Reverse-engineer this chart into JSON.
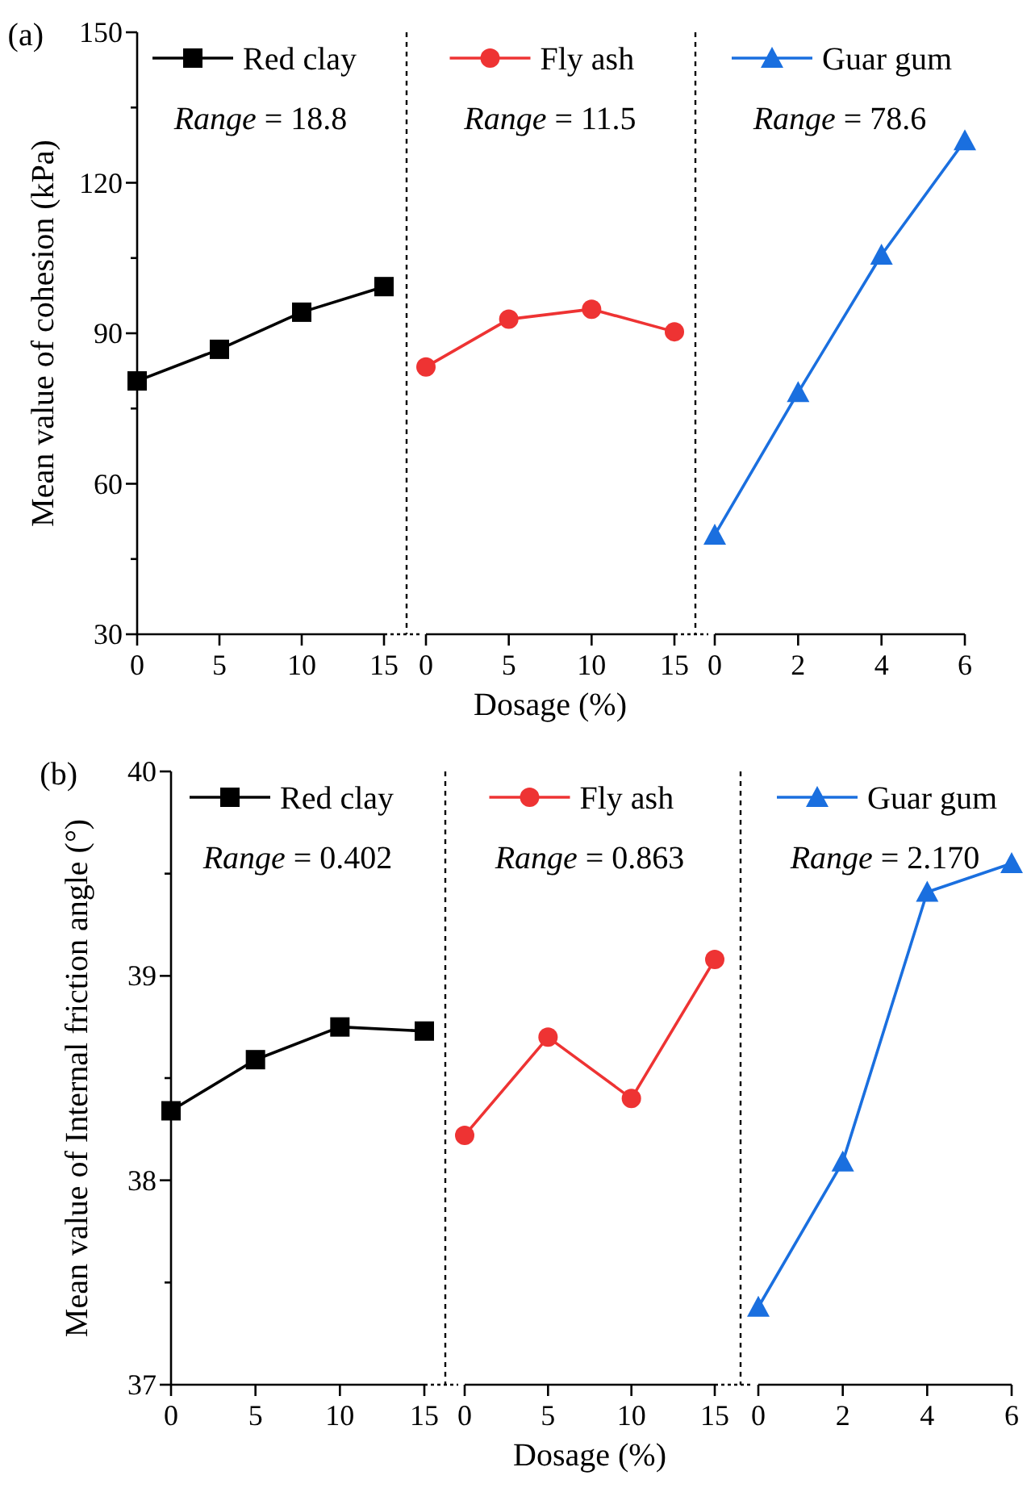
{
  "chart_data": [
    {
      "type": "line",
      "title": "(a)",
      "ylabel": "Mean value of cohesion (kPa)",
      "annotations": [
        "Range = 18.8"
      ],
      "x": [
        0,
        5,
        10,
        15
      ],
      "xlim": [
        0,
        15
      ],
      "xticks": [
        0,
        5,
        10,
        15
      ],
      "ylim": [
        30,
        150
      ],
      "yticks": [
        30,
        {
          "value": 45,
          "label": null
        },
        60,
        {
          "value": 75,
          "label": null
        },
        90,
        {
          "value": 105,
          "label": null
        },
        120,
        {
          "value": 135,
          "label": null
        },
        150
      ],
      "legend": "top",
      "marker": "square",
      "grid": false,
      "series": [
        {
          "name": "Red clay",
          "color": "#000000",
          "values": [
            80.5,
            86.8,
            94.2,
            99.3
          ]
        }
      ]
    },
    {
      "type": "line",
      "xlabel": "Dosage (%)",
      "annotations": [
        "Range = 11.5"
      ],
      "x": [
        0,
        5,
        10,
        15
      ],
      "xlim": [
        0,
        15
      ],
      "xticks": [
        0,
        5,
        10,
        15
      ],
      "ylim": [
        30,
        150
      ],
      "yticks": [
        30,
        60,
        90,
        120,
        150
      ],
      "tick_labels": "x",
      "legend": "top",
      "marker": "circle",
      "grid": false,
      "series": [
        {
          "name": "Fly ash",
          "color": "#ee3333",
          "values": [
            83.3,
            92.8,
            94.8,
            90.3
          ]
        }
      ]
    },
    {
      "type": "line",
      "annotations": [
        "Range = 78.6"
      ],
      "x": [
        0,
        2,
        4,
        6
      ],
      "xlim": [
        0,
        6
      ],
      "xticks": [
        0,
        2,
        4,
        6
      ],
      "ylim": [
        30,
        150
      ],
      "yticks": [
        30,
        60,
        90,
        120,
        150
      ],
      "tick_labels": "x",
      "legend": "top",
      "marker": "triangle",
      "grid": false,
      "series": [
        {
          "name": "Guar gum",
          "color": "#1a6fdf",
          "values": [
            49.8,
            78.2,
            105.6,
            128.4
          ]
        }
      ]
    },
    {
      "type": "line",
      "title": "(b)",
      "ylabel": "Mean value of Internal friction angle (°)",
      "annotations": [
        "Range = 0.402"
      ],
      "x": [
        0,
        5,
        10,
        15
      ],
      "xlim": [
        0,
        15
      ],
      "xticks": [
        0,
        5,
        10,
        15
      ],
      "ylim": [
        37,
        40
      ],
      "yticks": [
        37,
        {
          "value": 37.5,
          "label": null
        },
        38,
        {
          "value": 38.5,
          "label": null
        },
        39,
        {
          "value": 39.5,
          "label": null
        },
        40
      ],
      "legend": "top",
      "marker": "square",
      "grid": false,
      "series": [
        {
          "name": "Red clay",
          "color": "#000000",
          "values": [
            38.34,
            38.59,
            38.75,
            38.73
          ]
        }
      ]
    },
    {
      "type": "line",
      "xlabel": "Dosage (%)",
      "annotations": [
        "Range = 0.863"
      ],
      "x": [
        0,
        5,
        10,
        15
      ],
      "xlim": [
        0,
        15
      ],
      "xticks": [
        0,
        5,
        10,
        15
      ],
      "ylim": [
        37,
        40
      ],
      "yticks": [
        37,
        38,
        39,
        40
      ],
      "tick_labels": "x",
      "legend": "top",
      "marker": "circle",
      "grid": false,
      "series": [
        {
          "name": "Fly ash",
          "color": "#ee3333",
          "values": [
            38.22,
            38.7,
            38.4,
            39.08
          ]
        }
      ]
    },
    {
      "type": "line",
      "annotations": [
        "Range = 2.170"
      ],
      "x": [
        0,
        2,
        4,
        6
      ],
      "xlim": [
        0,
        6
      ],
      "xticks": [
        0,
        2,
        4,
        6
      ],
      "ylim": [
        37,
        40
      ],
      "yticks": [
        37,
        38,
        39,
        40
      ],
      "tick_labels": "x",
      "legend": "top",
      "marker": "triangle",
      "grid": false,
      "series": [
        {
          "name": "Guar gum",
          "color": "#1a6fdf",
          "values": [
            37.38,
            38.09,
            39.41,
            39.55
          ]
        }
      ]
    }
  ]
}
